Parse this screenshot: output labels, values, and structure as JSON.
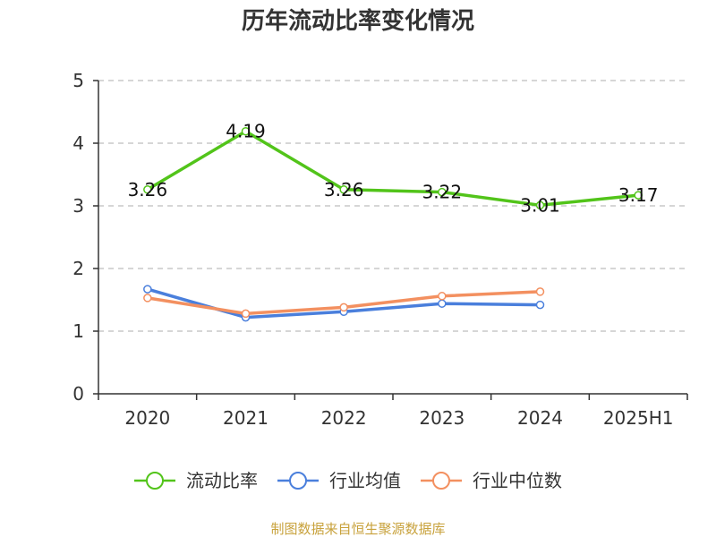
{
  "chart_data": {
    "type": "line",
    "title": "历年流动比率变化情况",
    "categories": [
      "2020",
      "2021",
      "2022",
      "2023",
      "2024",
      "2025H1"
    ],
    "ylim": [
      0,
      5
    ],
    "yticks": [
      "0",
      "1",
      "2",
      "3",
      "4",
      "5"
    ],
    "grid": true,
    "legend_position": "bottom",
    "series": [
      {
        "name": "流动比率",
        "color": "#52c41a",
        "labels": true,
        "values": [
          3.26,
          4.19,
          3.26,
          3.22,
          3.01,
          3.17
        ],
        "value_labels": [
          "3.26",
          "4.19",
          "3.26",
          "3.22",
          "3.01",
          "3.17"
        ]
      },
      {
        "name": "行业均值",
        "color": "#4a7fdc",
        "labels": false,
        "values": [
          1.67,
          1.22,
          1.31,
          1.44,
          1.42,
          null
        ]
      },
      {
        "name": "行业中位数",
        "color": "#f39060",
        "labels": false,
        "values": [
          1.53,
          1.28,
          1.38,
          1.56,
          1.63,
          null
        ]
      }
    ]
  },
  "source_text": "制图数据来自恒生聚源数据库"
}
